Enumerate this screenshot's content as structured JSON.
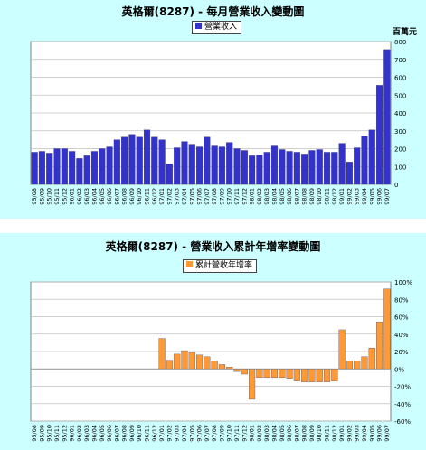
{
  "chart_data": [
    {
      "type": "bar",
      "title": "英格爾(8287) - 每月營業收入變動圖",
      "unit": "百萬元",
      "legend_placement": "top-center",
      "grid": true,
      "color": "#3333cc",
      "ylim": [
        0,
        800
      ],
      "yticks": [
        0,
        100,
        200,
        300,
        400,
        500,
        600,
        700,
        800
      ],
      "categories": [
        "95/08",
        "95/09",
        "95/10",
        "95/11",
        "95/12",
        "96/01",
        "96/02",
        "96/03",
        "96/04",
        "96/05",
        "96/06",
        "96/07",
        "96/08",
        "96/09",
        "96/10",
        "96/11",
        "96/12",
        "97/01",
        "97/02",
        "97/03",
        "97/04",
        "97/05",
        "97/06",
        "97/07",
        "97/08",
        "97/09",
        "97/10",
        "97/11",
        "97/12",
        "98/01",
        "98/02",
        "98/03",
        "98/04",
        "98/05",
        "98/06",
        "98/07",
        "98/08",
        "98/09",
        "98/10",
        "98/11",
        "98/12",
        "99/01",
        "99/02",
        "99/03",
        "99/04",
        "99/05",
        "99/06",
        "99/07"
      ],
      "series": [
        {
          "name": "營業收入",
          "values": [
            180,
            185,
            175,
            200,
            200,
            185,
            145,
            160,
            185,
            200,
            210,
            250,
            265,
            280,
            265,
            305,
            265,
            250,
            115,
            205,
            240,
            225,
            210,
            265,
            215,
            210,
            235,
            200,
            190,
            160,
            165,
            180,
            215,
            195,
            185,
            180,
            170,
            190,
            195,
            180,
            180,
            230,
            125,
            205,
            270,
            305,
            555,
            755
          ]
        }
      ]
    },
    {
      "type": "bar",
      "title": "英格爾(8287) - 營業收入累計年增率變動圖",
      "legend_placement": "top-center",
      "grid": true,
      "color": "#ff9933",
      "ylim": [
        -60,
        100
      ],
      "yticks": [
        -60,
        -40,
        -20,
        0,
        20,
        40,
        60,
        80,
        100
      ],
      "yticklabels": [
        "-60%",
        "-40%",
        "-20%",
        "0%",
        "20%",
        "40%",
        "60%",
        "80%",
        "100%"
      ],
      "categories": [
        "95/08",
        "95/09",
        "95/10",
        "95/11",
        "95/12",
        "96/01",
        "96/02",
        "96/03",
        "96/04",
        "96/05",
        "96/06",
        "96/07",
        "96/08",
        "96/09",
        "96/10",
        "96/11",
        "96/12",
        "97/01",
        "97/02",
        "97/03",
        "97/04",
        "97/05",
        "97/06",
        "97/07",
        "97/08",
        "97/09",
        "97/10",
        "97/11",
        "97/12",
        "98/01",
        "98/02",
        "98/03",
        "98/04",
        "98/05",
        "98/06",
        "98/07",
        "98/08",
        "98/09",
        "98/10",
        "98/11",
        "98/12",
        "99/01",
        "99/02",
        "99/03",
        "99/04",
        "99/05",
        "99/06",
        "99/07"
      ],
      "series": [
        {
          "name": "累計營收年增率",
          "values": [
            0,
            0,
            0,
            0,
            0,
            0,
            0,
            0,
            0,
            0,
            0,
            0,
            0,
            0,
            0,
            0,
            0,
            35,
            10,
            17,
            21,
            19,
            16,
            14,
            9,
            5,
            2,
            -3,
            -6,
            -35,
            -10,
            -10,
            -10,
            -10,
            -11,
            -14,
            -15,
            -15,
            -15,
            -15,
            -14,
            45,
            9,
            9,
            14,
            24,
            54,
            92
          ]
        }
      ]
    }
  ]
}
